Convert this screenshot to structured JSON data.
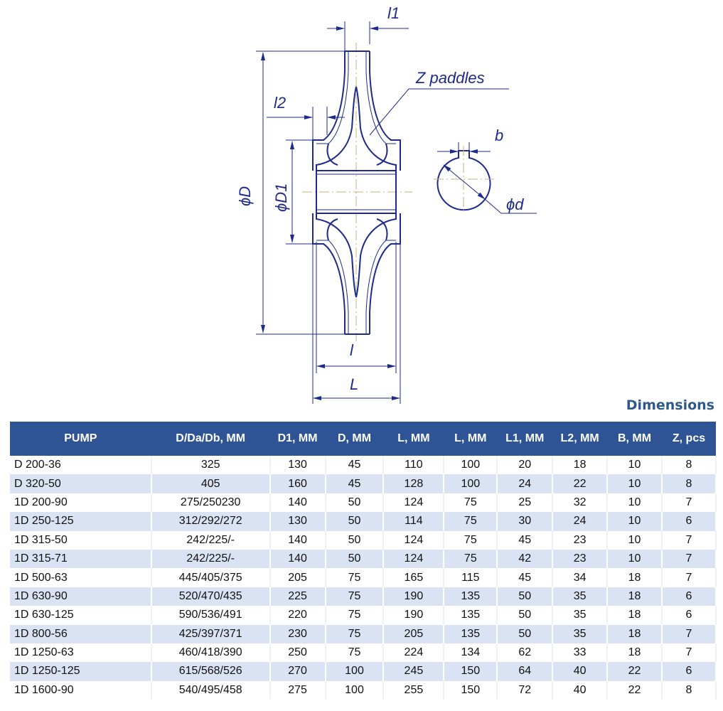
{
  "drawing": {
    "labels": {
      "l1": "l1",
      "l2": "l2",
      "phiD": "ϕD",
      "phiD1": "ϕD1",
      "l": "l",
      "L": "L",
      "z_paddles": "Z paddles",
      "b": "b",
      "phid": "ϕd"
    },
    "line_color": "#1e2a8c"
  },
  "table": {
    "title": "Dimensions",
    "header_color": "#2f5496",
    "alt_row_color": "#dae3f3",
    "columns": [
      "PUMP",
      "D/Da/Db, MM",
      "D1, MM",
      "D, MM",
      "L, MM",
      "L, MM",
      "L1, MM",
      "L2, MM",
      "B, MM",
      "Z, pcs"
    ],
    "rows": [
      [
        "D 200-36",
        "325",
        "130",
        "45",
        "110",
        "100",
        "20",
        "18",
        "10",
        "8"
      ],
      [
        "D 320-50",
        "405",
        "160",
        "45",
        "128",
        "100",
        "24",
        "22",
        "10",
        "8"
      ],
      [
        "1D 200-90",
        "275/250230",
        "140",
        "50",
        "124",
        "75",
        "25",
        "32",
        "10",
        "7"
      ],
      [
        "1D 250-125",
        "312/292/272",
        "130",
        "50",
        "114",
        "75",
        "30",
        "24",
        "10",
        "6"
      ],
      [
        "1D 315-50",
        "242/225/-",
        "140",
        "50",
        "124",
        "75",
        "45",
        "23",
        "10",
        "7"
      ],
      [
        "1D 315-71",
        "242/225/-",
        "140",
        "50",
        "124",
        "75",
        "42",
        "23",
        "10",
        "7"
      ],
      [
        "1D 500-63",
        "445/405/375",
        "205",
        "75",
        "165",
        "115",
        "45",
        "34",
        "18",
        "7"
      ],
      [
        "1D 630-90",
        "520/470/435",
        "225",
        "75",
        "190",
        "135",
        "50",
        "35",
        "18",
        "6"
      ],
      [
        "1D 630-125",
        "590/536/491",
        "220",
        "75",
        "190",
        "135",
        "50",
        "35",
        "18",
        "6"
      ],
      [
        "1D 800-56",
        "425/397/371",
        "230",
        "75",
        "205",
        "135",
        "50",
        "35",
        "18",
        "7"
      ],
      [
        "1D 1250-63",
        "460/418/390",
        "250",
        "75",
        "224",
        "134",
        "62",
        "33",
        "18",
        "7"
      ],
      [
        "1D 1250-125",
        "615/568/526",
        "270",
        "100",
        "245",
        "150",
        "64",
        "40",
        "22",
        "6"
      ],
      [
        "1D 1600-90",
        "540/495/458",
        "275",
        "100",
        "255",
        "150",
        "72",
        "40",
        "22",
        "8"
      ]
    ]
  }
}
